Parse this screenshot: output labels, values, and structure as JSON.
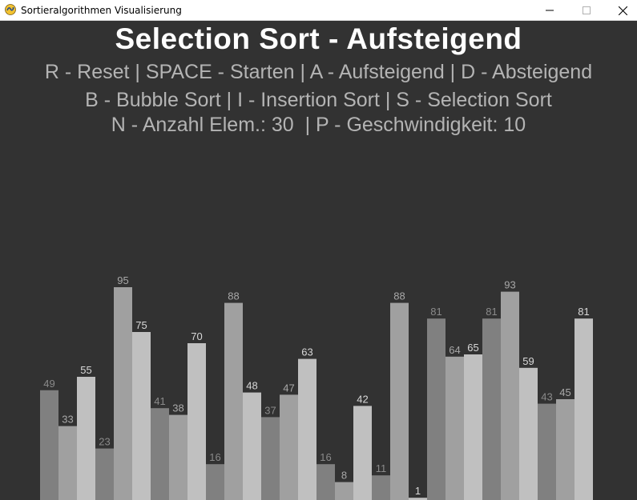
{
  "window": {
    "title": "Sortieralgorithmen Visualisierung",
    "icon": "pygame-snake-icon",
    "controls": [
      "minimize-icon",
      "maximize-icon",
      "close-icon"
    ]
  },
  "header": {
    "title": "Selection Sort - Aufsteigend",
    "line1": "R - Reset | SPACE - Starten | A - Aufsteigend | D - Absteigend",
    "line2": "B - Bubble Sort | I - Insertion Sort | S - Selection Sort",
    "line3": "N - Anzahl Elem.: 30  | P - Geschwindigkeit: 10"
  },
  "colors": {
    "background": "#323232",
    "bar_shades": [
      "#808080",
      "#a0a0a0",
      "#c0c0c0"
    ],
    "title": "#ffffff",
    "info_text": "#b4b4b4"
  },
  "chart_data": {
    "type": "bar",
    "values": [
      49,
      33,
      55,
      23,
      95,
      75,
      41,
      38,
      70,
      16,
      88,
      48,
      37,
      47,
      63,
      16,
      8,
      42,
      11,
      88,
      1,
      81,
      64,
      65,
      81,
      93,
      59,
      43,
      45,
      81
    ],
    "value_labels": [
      "49",
      "33",
      "55",
      "23",
      "95",
      "75",
      "41",
      "38",
      "70",
      "16",
      "88",
      "48",
      "37",
      "47",
      "63",
      "16",
      "8",
      "42",
      "11",
      "88",
      "1",
      "81",
      "64",
      "65",
      "81",
      "93",
      "59",
      "43",
      "45",
      "81"
    ],
    "ylim": [
      0,
      100
    ],
    "element_count": 30,
    "grid": false,
    "legend": "none"
  }
}
